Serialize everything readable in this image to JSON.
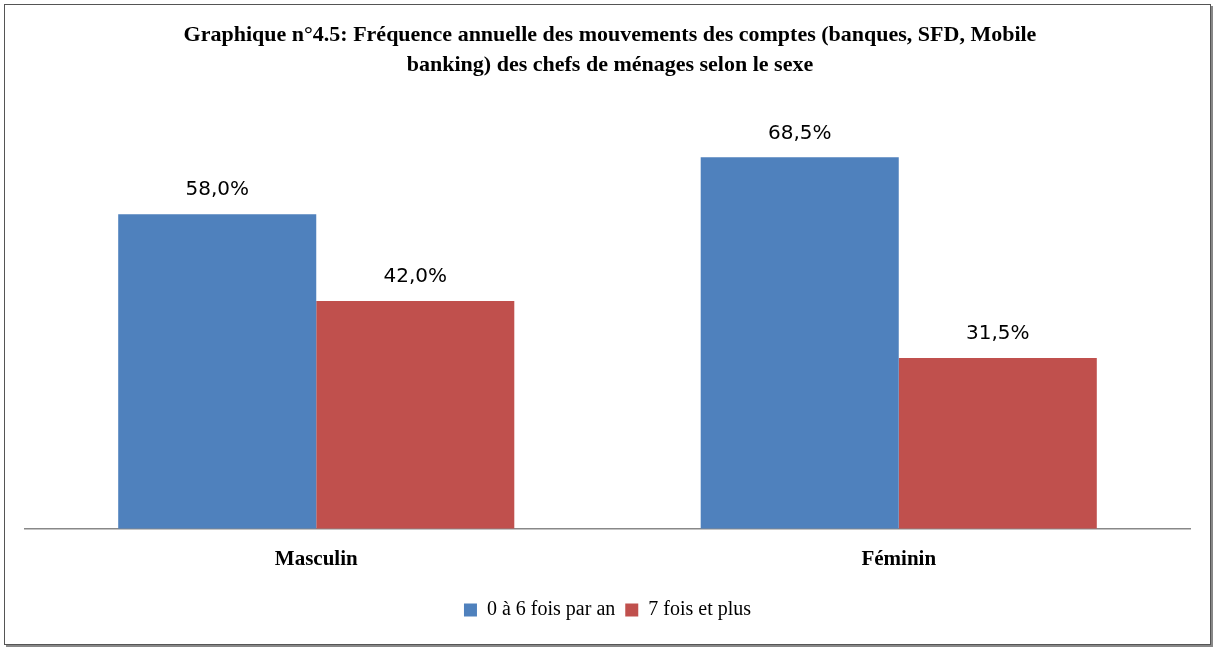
{
  "chart_data": {
    "type": "bar",
    "title": "Graphique n°4.5: Fréquence annuelle des mouvements des comptes (banques, SFD, Mobile banking) des chefs de ménages selon le sexe",
    "categories": [
      "Masculin",
      "Féminin"
    ],
    "series": [
      {
        "name": "0 à 6 fois par an",
        "color": "#4f81bd",
        "values": [
          58.0,
          68.5
        ],
        "value_labels": [
          "58,0%",
          "68,5%"
        ]
      },
      {
        "name": "7 fois et plus",
        "color": "#c0504d",
        "values": [
          42.0,
          31.5
        ],
        "value_labels": [
          "42,0%",
          "31,5%"
        ]
      }
    ],
    "legend": "bottom",
    "grid": false
  }
}
